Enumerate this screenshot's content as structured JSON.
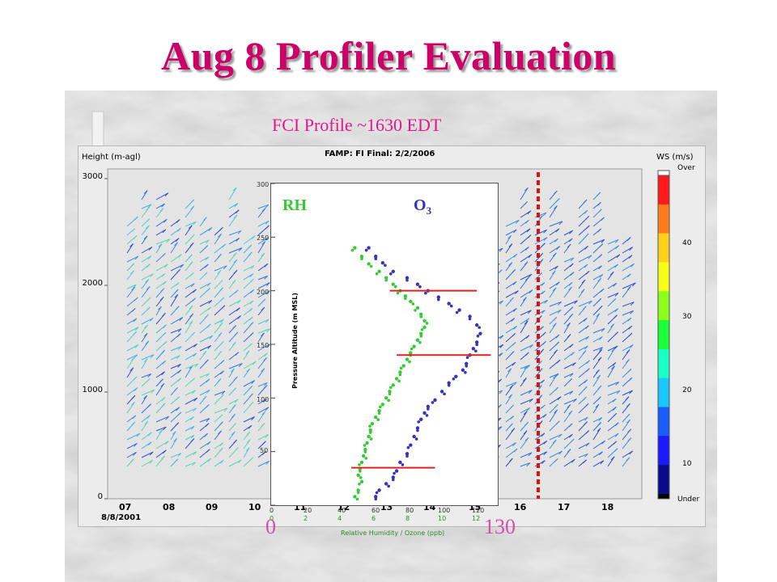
{
  "slide": {
    "title": "Aug 8 Profiler Evaluation"
  },
  "colors": {
    "title": "#cc0066",
    "rh": "#33cc33",
    "o3": "#3333bb",
    "level_line": "#dd2222",
    "scale_text": "#d24fb0"
  },
  "profiler": {
    "chart_title": "FCI Profile ~1630 EDT",
    "height_label": "Height (m-agl)",
    "ws_label": "WS (m/s)",
    "over_label": "Over",
    "under_label": "Under",
    "date_label": "8/8/2001",
    "header_text": "FAMP: FI Final: 2/2/2006",
    "y_ticks": [
      "0",
      "1000",
      "2000",
      "3000"
    ],
    "x_ticks": [
      "07",
      "08",
      "09",
      "10",
      "11",
      "12",
      "13",
      "14",
      "15",
      "16",
      "17",
      "18"
    ],
    "colorbar_ticks": [
      "10",
      "20",
      "30",
      "40"
    ]
  },
  "inset": {
    "rh_label": "RH",
    "o3_label_main": "O",
    "o3_label_sub": "3",
    "y_axis_label": "Pressure Altitude (m MSL)",
    "y_ticks": [
      "50",
      "100",
      "150",
      "200",
      "250",
      "300"
    ],
    "x_ticks": [
      "0",
      "20",
      "40",
      "60",
      "80",
      "100",
      "120"
    ],
    "x_ticks_low": [
      "0",
      "2",
      "4",
      "6",
      "8",
      "10",
      "12"
    ],
    "legend_text": "Relative Humidity / Ozone (ppb)",
    "scale_min": "0",
    "scale_max": "130"
  },
  "chart_data": {
    "type": "scatter",
    "xlim": [
      0,
      130
    ],
    "ylim": [
      0,
      300
    ],
    "series": [
      {
        "name": "RH",
        "color": "#33cc33",
        "points": [
          [
            48,
            240
          ],
          [
            52,
            232
          ],
          [
            56,
            225
          ],
          [
            62,
            218
          ],
          [
            66,
            212
          ],
          [
            70,
            206
          ],
          [
            74,
            200
          ],
          [
            77,
            195
          ],
          [
            80,
            190
          ],
          [
            84,
            184
          ],
          [
            86,
            178
          ],
          [
            88,
            172
          ],
          [
            88,
            166
          ],
          [
            86,
            160
          ],
          [
            84,
            154
          ],
          [
            82,
            148
          ],
          [
            80,
            142
          ],
          [
            78,
            136
          ],
          [
            76,
            130
          ],
          [
            74,
            124
          ],
          [
            72,
            118
          ],
          [
            70,
            112
          ],
          [
            68,
            106
          ],
          [
            66,
            100
          ],
          [
            64,
            94
          ],
          [
            62,
            88
          ],
          [
            60,
            82
          ],
          [
            58,
            76
          ],
          [
            57,
            70
          ],
          [
            56,
            64
          ],
          [
            55,
            58
          ],
          [
            54,
            52
          ],
          [
            53,
            46
          ],
          [
            52,
            40
          ],
          [
            51,
            34
          ],
          [
            50,
            28
          ],
          [
            52,
            22
          ],
          [
            50,
            14
          ],
          [
            48,
            8
          ]
        ]
      },
      {
        "name": "O₃",
        "color": "#3333bb",
        "points": [
          [
            56,
            240
          ],
          [
            60,
            232
          ],
          [
            64,
            226
          ],
          [
            70,
            218
          ],
          [
            78,
            212
          ],
          [
            84,
            206
          ],
          [
            90,
            200
          ],
          [
            96,
            194
          ],
          [
            102,
            188
          ],
          [
            108,
            182
          ],
          [
            114,
            176
          ],
          [
            118,
            168
          ],
          [
            120,
            160
          ],
          [
            118,
            152
          ],
          [
            116,
            146
          ],
          [
            114,
            140
          ],
          [
            112,
            132
          ],
          [
            110,
            126
          ],
          [
            106,
            120
          ],
          [
            102,
            114
          ],
          [
            98,
            106
          ],
          [
            94,
            98
          ],
          [
            90,
            92
          ],
          [
            88,
            86
          ],
          [
            86,
            80
          ],
          [
            84,
            72
          ],
          [
            82,
            64
          ],
          [
            80,
            56
          ],
          [
            78,
            48
          ],
          [
            74,
            40
          ],
          [
            72,
            32
          ],
          [
            70,
            26
          ],
          [
            66,
            20
          ],
          [
            62,
            14
          ],
          [
            60,
            8
          ]
        ]
      }
    ],
    "reference_lines": [
      200,
      140,
      35
    ]
  }
}
